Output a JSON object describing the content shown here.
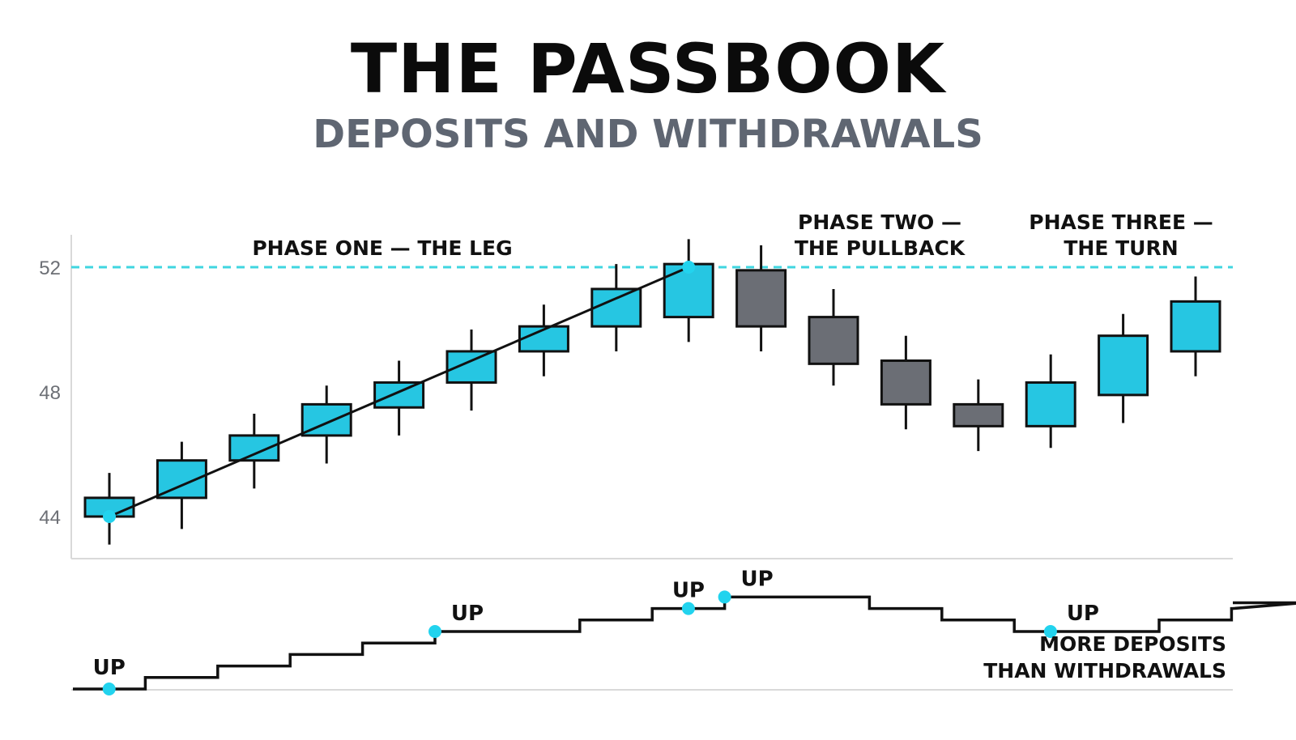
{
  "header": {
    "title": "THE PASSBOOK",
    "subtitle": "DEPOSITS AND WITHDRAWALS"
  },
  "colors": {
    "up_candle": "#26c6e2",
    "down_candle": "#6b6e75",
    "reference_line": "#3fd6e0",
    "marker": "#22d3ee",
    "ink": "#111111",
    "axis": "#d9d9d9"
  },
  "chart_data": [
    {
      "type": "candlestick",
      "title": "",
      "xlabel": "",
      "ylabel": "",
      "ylim": [
        42.7,
        53.5
      ],
      "y_ticks": [
        44,
        48,
        52
      ],
      "reference_line": {
        "y": 52,
        "style": "dashed"
      },
      "candles": [
        {
          "open": 44.0,
          "high": 45.4,
          "low": 43.1,
          "close": 44.6,
          "direction": "up"
        },
        {
          "open": 44.6,
          "high": 46.4,
          "low": 43.6,
          "close": 45.8,
          "direction": "up"
        },
        {
          "open": 45.8,
          "high": 47.3,
          "low": 44.9,
          "close": 46.6,
          "direction": "up"
        },
        {
          "open": 46.6,
          "high": 48.2,
          "low": 45.7,
          "close": 47.6,
          "direction": "up"
        },
        {
          "open": 47.5,
          "high": 49.0,
          "low": 46.6,
          "close": 48.3,
          "direction": "up"
        },
        {
          "open": 48.3,
          "high": 50.0,
          "low": 47.4,
          "close": 49.3,
          "direction": "up"
        },
        {
          "open": 49.3,
          "high": 50.8,
          "low": 48.5,
          "close": 50.1,
          "direction": "up"
        },
        {
          "open": 50.1,
          "high": 52.1,
          "low": 49.3,
          "close": 51.3,
          "direction": "up"
        },
        {
          "open": 50.4,
          "high": 52.9,
          "low": 49.6,
          "close": 52.1,
          "direction": "up"
        },
        {
          "open": 51.9,
          "high": 52.7,
          "low": 49.3,
          "close": 50.1,
          "direction": "down"
        },
        {
          "open": 50.4,
          "high": 51.3,
          "low": 48.2,
          "close": 48.9,
          "direction": "down"
        },
        {
          "open": 49.0,
          "high": 49.8,
          "low": 46.8,
          "close": 47.6,
          "direction": "down"
        },
        {
          "open": 47.6,
          "high": 48.4,
          "low": 46.1,
          "close": 46.9,
          "direction": "down"
        },
        {
          "open": 46.9,
          "high": 49.2,
          "low": 46.2,
          "close": 48.3,
          "direction": "up"
        },
        {
          "open": 47.9,
          "high": 50.5,
          "low": 47.0,
          "close": 49.8,
          "direction": "up"
        },
        {
          "open": 49.3,
          "high": 51.7,
          "low": 48.5,
          "close": 50.9,
          "direction": "up"
        }
      ],
      "trend_line": {
        "from_candle": 0,
        "from_value": 44.0,
        "to_candle": 8,
        "to_value": 52.0
      },
      "markers": [
        {
          "candle": 0,
          "value": 44.0
        },
        {
          "candle": 8,
          "value": 52.0
        }
      ],
      "annotations": [
        {
          "lines": [
            "PHASE ONE — THE LEG"
          ]
        },
        {
          "lines": [
            "PHASE TWO —",
            "THE PULLBACK"
          ]
        },
        {
          "lines": [
            "PHASE THREE —",
            "THE TURN"
          ]
        }
      ]
    },
    {
      "type": "step",
      "title": "",
      "values": [
        0,
        1,
        2,
        3,
        4,
        5,
        5,
        6,
        7,
        8,
        8,
        7,
        6,
        5,
        5,
        6,
        7,
        7.5
      ],
      "markers": [
        {
          "position": 0.5,
          "label": "UP"
        },
        {
          "position": 5.0,
          "label": ""
        },
        {
          "position": 8.5,
          "label": "UP"
        },
        {
          "position": 9.0,
          "label": "UP"
        },
        {
          "position": 13.5,
          "label": "UP"
        }
      ],
      "up_label_near_step": {
        "position": 5.0,
        "label": "UP"
      },
      "caption": [
        "MORE DEPOSITS",
        "THAN WITHDRAWALS"
      ]
    }
  ]
}
